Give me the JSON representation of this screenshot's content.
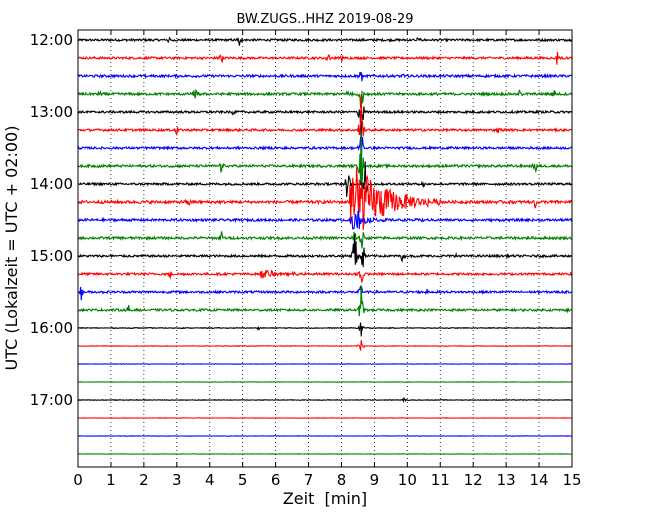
{
  "chart_data": {
    "type": "line",
    "title": "BW.ZUGS..HHZ 2019-08-29",
    "xlabel": "Zeit  [min]",
    "ylabel": "UTC (Lokalzeit = UTC + 02:00)",
    "xlim": [
      0,
      15
    ],
    "x_ticks": [
      "0",
      "1",
      "2",
      "3",
      "4",
      "5",
      "6",
      "7",
      "8",
      "9",
      "10",
      "11",
      "12",
      "13",
      "14",
      "15"
    ],
    "y_ticks": [
      "12:00",
      "13:00",
      "14:00",
      "15:00",
      "16:00",
      "17:00"
    ],
    "grid": true,
    "row_minutes": 15,
    "start_time": "12:00",
    "row_colors": [
      "#000000",
      "#ff0000",
      "#0000ff",
      "#008000"
    ],
    "rows": [
      {
        "start": "12:00",
        "color": "#000000",
        "noise": 1.0,
        "spikes": [
          [
            2.75,
            6
          ],
          [
            4.9,
            6
          ],
          [
            10.3,
            5
          ]
        ]
      },
      {
        "start": "12:15",
        "color": "#ff0000",
        "noise": 1.0,
        "spikes": [
          [
            4.35,
            9
          ],
          [
            7.6,
            8
          ],
          [
            14.55,
            9
          ],
          [
            8.0,
            5
          ]
        ]
      },
      {
        "start": "12:30",
        "color": "#0000ff",
        "noise": 1.1,
        "spikes": [
          [
            8.6,
            9
          ],
          [
            9.9,
            4
          ],
          [
            2.1,
            3
          ]
        ]
      },
      {
        "start": "12:45",
        "color": "#008000",
        "noise": 1.1,
        "spikes": [
          [
            0.65,
            5
          ],
          [
            3.55,
            9
          ],
          [
            8.2,
            8
          ],
          [
            8.6,
            25
          ],
          [
            13.4,
            5
          ],
          [
            14.45,
            10
          ]
        ]
      },
      {
        "start": "13:00",
        "color": "#000000",
        "noise": 1.0,
        "spikes": [
          [
            8.6,
            45
          ],
          [
            4.7,
            3
          ]
        ]
      },
      {
        "start": "13:15",
        "color": "#ff0000",
        "noise": 1.0,
        "spikes": [
          [
            3.0,
            7
          ],
          [
            8.6,
            45
          ],
          [
            12.75,
            8
          ]
        ]
      },
      {
        "start": "13:30",
        "color": "#0000ff",
        "noise": 1.0,
        "spikes": [
          [
            8.6,
            40
          ],
          [
            6.3,
            3
          ]
        ]
      },
      {
        "start": "13:45",
        "color": "#008000",
        "noise": 1.1,
        "spikes": [
          [
            4.35,
            8
          ],
          [
            8.6,
            40
          ],
          [
            13.9,
            8
          ]
        ]
      },
      {
        "start": "14:00",
        "color": "#000000",
        "noise": 1.0,
        "spikes": [
          [
            10.5,
            6
          ],
          [
            8.2,
            35
          ],
          [
            8.7,
            45
          ]
        ]
      },
      {
        "start": "14:15",
        "color": "#ff0000",
        "noise": 1.3,
        "spikes": [
          [
            3.35,
            8
          ],
          [
            13.9,
            9
          ]
        ],
        "burst": [
          8.25,
          11.0,
          45
        ]
      },
      {
        "start": "14:30",
        "color": "#0000ff",
        "noise": 1.1,
        "spikes": [
          [
            8.5,
            14
          ],
          [
            10.5,
            4
          ]
        ],
        "burst": [
          8.25,
          9.4,
          12
        ]
      },
      {
        "start": "14:45",
        "color": "#008000",
        "noise": 1.1,
        "spikes": [
          [
            4.35,
            9
          ],
          [
            8.4,
            10
          ],
          [
            8.6,
            25
          ]
        ]
      },
      {
        "start": "15:00",
        "color": "#000000",
        "noise": 1.0,
        "spikes": [
          [
            1.0,
            4
          ],
          [
            8.4,
            45
          ],
          [
            8.65,
            20
          ],
          [
            9.85,
            9
          ],
          [
            11.5,
            4
          ]
        ]
      },
      {
        "start": "15:15",
        "color": "#ff0000",
        "noise": 1.0,
        "spikes": [
          [
            2.8,
            7
          ],
          [
            8.6,
            20
          ]
        ],
        "burst": [
          5.5,
          7.2,
          5
        ]
      },
      {
        "start": "15:30",
        "color": "#0000ff",
        "noise": 1.0,
        "spikes": [
          [
            0.1,
            9
          ],
          [
            8.6,
            12
          ],
          [
            10.6,
            4
          ]
        ]
      },
      {
        "start": "15:45",
        "color": "#008000",
        "noise": 1.0,
        "spikes": [
          [
            1.55,
            8
          ],
          [
            8.6,
            28
          ],
          [
            14.9,
            4
          ]
        ]
      },
      {
        "start": "16:00",
        "color": "#000000",
        "noise": 0.35,
        "spikes": [
          [
            5.5,
            3
          ],
          [
            8.6,
            10
          ]
        ]
      },
      {
        "start": "16:15",
        "color": "#ff0000",
        "noise": 0.25,
        "spikes": [
          [
            8.6,
            12
          ]
        ]
      },
      {
        "start": "16:30",
        "color": "#0000ff",
        "noise": 0.2,
        "spikes": []
      },
      {
        "start": "16:45",
        "color": "#008000",
        "noise": 0.2,
        "spikes": []
      },
      {
        "start": "17:00",
        "color": "#000000",
        "noise": 0.3,
        "spikes": [
          [
            9.9,
            2
          ]
        ]
      },
      {
        "start": "17:15",
        "color": "#ff0000",
        "noise": 0.2,
        "spikes": []
      },
      {
        "start": "17:30",
        "color": "#0000ff",
        "noise": 0.2,
        "spikes": []
      },
      {
        "start": "17:45",
        "color": "#008000",
        "noise": 0.2,
        "spikes": []
      }
    ]
  }
}
